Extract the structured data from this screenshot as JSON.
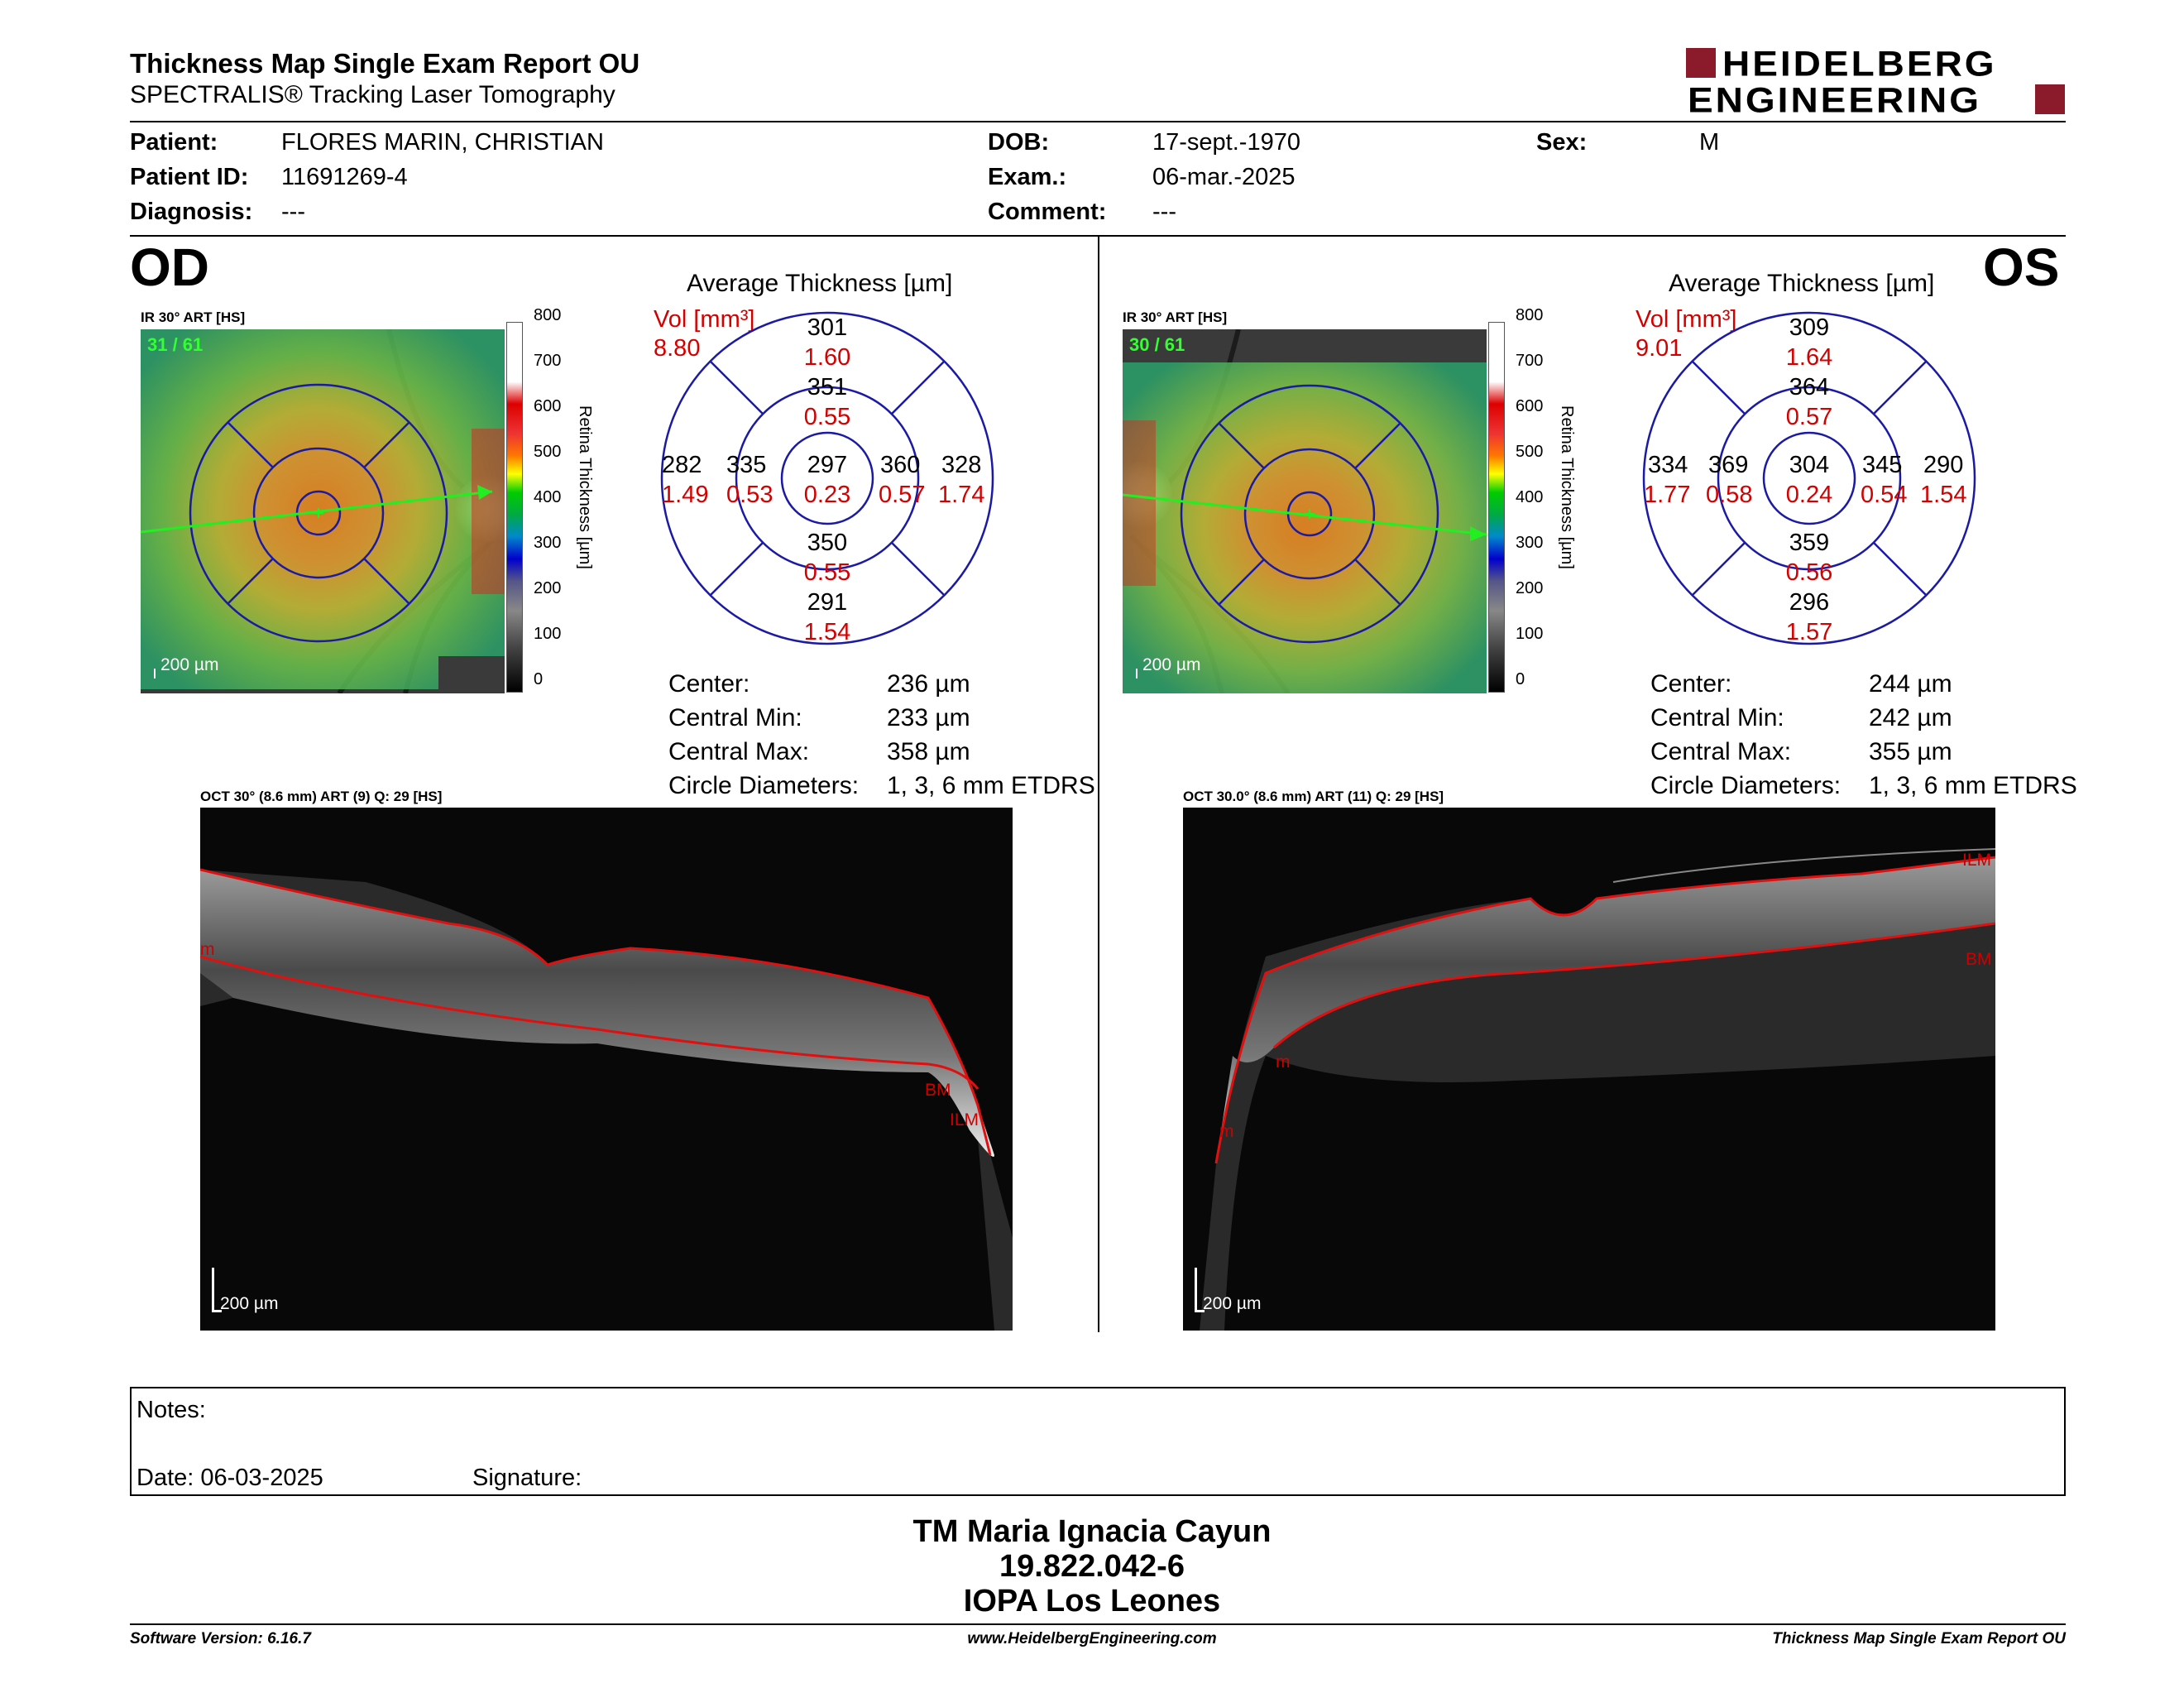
{
  "header": {
    "title": "Thickness Map Single Exam Report OU",
    "subtitle": "SPECTRALIS® Tracking Laser Tomography",
    "logo_line1": "HEIDELBERG",
    "logo_line2": "ENGINEERING"
  },
  "patient": {
    "patient_label": "Patient:",
    "patient_value": "FLORES MARIN, CHRISTIAN",
    "id_label": "Patient ID:",
    "id_value": "11691269-4",
    "diag_label": "Diagnosis:",
    "diag_value": "---",
    "dob_label": "DOB:",
    "dob_value": "17-sept.-1970",
    "exam_label": "Exam.:",
    "exam_value": "06-mar.-2025",
    "comment_label": "Comment:",
    "comment_value": "---",
    "sex_label": "Sex:",
    "sex_value": "M"
  },
  "od": {
    "eye": "OD",
    "ir_label": "IR 30° ART [HS]",
    "ir_counter": "31 / 61",
    "scale_label": "200 µm",
    "oct_label": "OCT 30° (8.6 mm) ART (9) Q: 29 [HS]",
    "oct_scale": "200 µm",
    "oct_marks": [
      "m",
      "BM",
      "ILM"
    ],
    "grid_title": "Average Thickness [µm]",
    "vol_label": "Vol [mm³]",
    "vol_value": "8.80",
    "sectors": {
      "center": [
        "297",
        "0.23"
      ],
      "inner_sup": [
        "351",
        "0.55"
      ],
      "inner_inf": [
        "350",
        "0.55"
      ],
      "inner_left": [
        "335",
        "0.53"
      ],
      "inner_right": [
        "360",
        "0.57"
      ],
      "outer_sup": [
        "301",
        "1.60"
      ],
      "outer_inf": [
        "291",
        "1.54"
      ],
      "outer_left": [
        "282",
        "1.49"
      ],
      "outer_right": [
        "328",
        "1.74"
      ]
    },
    "stats": {
      "center_label": "Center:",
      "center": "236 µm",
      "min_label": "Central Min:",
      "min": "233 µm",
      "max_label": "Central Max:",
      "max": "358 µm",
      "diam_label": "Circle Diameters:",
      "diam": "1, 3, 6 mm ETDRS"
    }
  },
  "os": {
    "eye": "OS",
    "ir_label": "IR 30° ART [HS]",
    "ir_counter": "30 / 61",
    "scale_label": "200 µm",
    "oct_label": "OCT 30.0° (8.6 mm) ART (11) Q: 29 [HS]",
    "oct_scale": "200 µm",
    "oct_marks": [
      "ILM",
      "BM",
      "m",
      "m"
    ],
    "grid_title": "Average Thickness [µm]",
    "vol_label": "Vol [mm³]",
    "vol_value": "9.01",
    "sectors": {
      "center": [
        "304",
        "0.24"
      ],
      "inner_sup": [
        "364",
        "0.57"
      ],
      "inner_inf": [
        "359",
        "0.56"
      ],
      "inner_left": [
        "369",
        "0.58"
      ],
      "inner_right": [
        "345",
        "0.54"
      ],
      "outer_sup": [
        "309",
        "1.64"
      ],
      "outer_inf": [
        "296",
        "1.57"
      ],
      "outer_left": [
        "334",
        "1.77"
      ],
      "outer_right": [
        "290",
        "1.54"
      ]
    },
    "stats": {
      "center_label": "Center:",
      "center": "244 µm",
      "min_label": "Central Min:",
      "min": "242 µm",
      "max_label": "Central Max:",
      "max": "355 µm",
      "diam_label": "Circle Diameters:",
      "diam": "1, 3, 6 mm ETDRS"
    }
  },
  "colorbar": {
    "ticks": [
      "800",
      "700",
      "600",
      "500",
      "400",
      "300",
      "200",
      "100",
      "0"
    ],
    "title": "Retina  Thickness [µm]"
  },
  "notes": {
    "notes_label": "Notes:",
    "date_label": "Date: 06-03-2025",
    "signature_label": "Signature:"
  },
  "stamp": {
    "line1": "TM Maria Ignacia Cayun",
    "line2": "19.822.042-6",
    "line3": "IOPA Los Leones"
  },
  "footer": {
    "software": "Software Version: 6.16.7",
    "url": "www.HeidelbergEngineering.com",
    "report": "Thickness Map Single Exam Report OU"
  },
  "colors": {
    "brand": "#8b1a2b",
    "grid": "#1a1aa6",
    "vol": "#d40000",
    "scan_line": "#22ee22"
  }
}
